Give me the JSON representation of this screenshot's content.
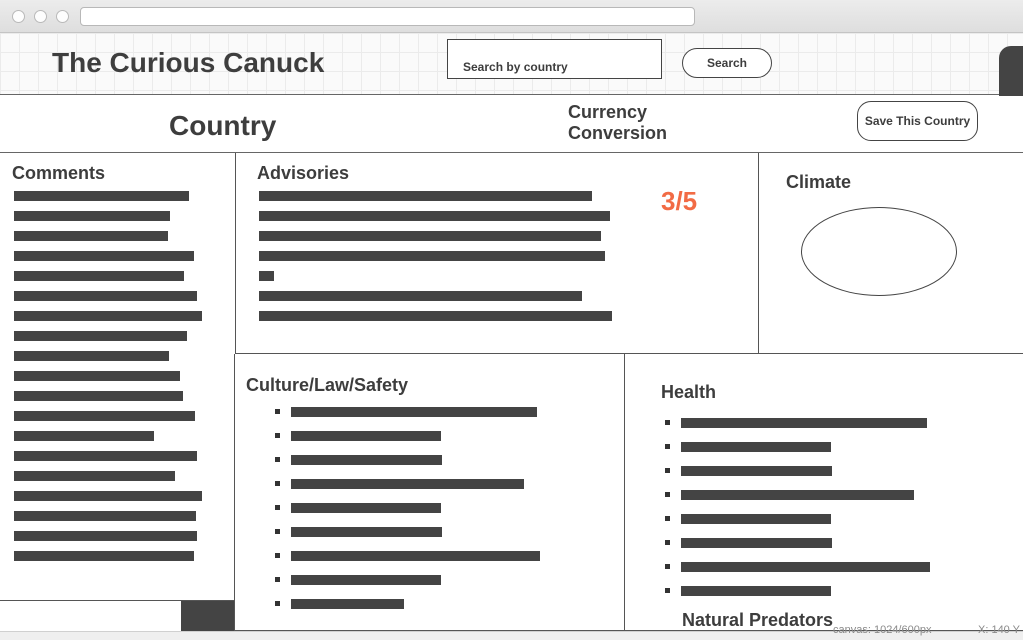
{
  "site": {
    "title": "The Curious Canuck"
  },
  "search": {
    "placeholder": "Search by country",
    "button_label": "Search"
  },
  "country_bar": {
    "country": "Country",
    "currency_line1": "Currency",
    "currency_line2": "Conversion",
    "save_label": "Save This Country"
  },
  "comments": {
    "title": "Comments"
  },
  "advisories": {
    "title": "Advisories",
    "rating": "3/5"
  },
  "climate": {
    "title": "Climate"
  },
  "culture": {
    "title": "Culture/Law/Safety"
  },
  "health": {
    "title": "Health",
    "subtitle": "Natural Predators"
  },
  "status": {
    "canvas": "canvas: 1024/600px",
    "coords": "X: 140 Y"
  },
  "colors": {
    "accent": "#f26b45",
    "bars": "#444444",
    "text": "#3d3d3d"
  },
  "icons": {
    "window_controls": [
      "close-icon",
      "minimize-icon",
      "maximize-icon"
    ]
  }
}
